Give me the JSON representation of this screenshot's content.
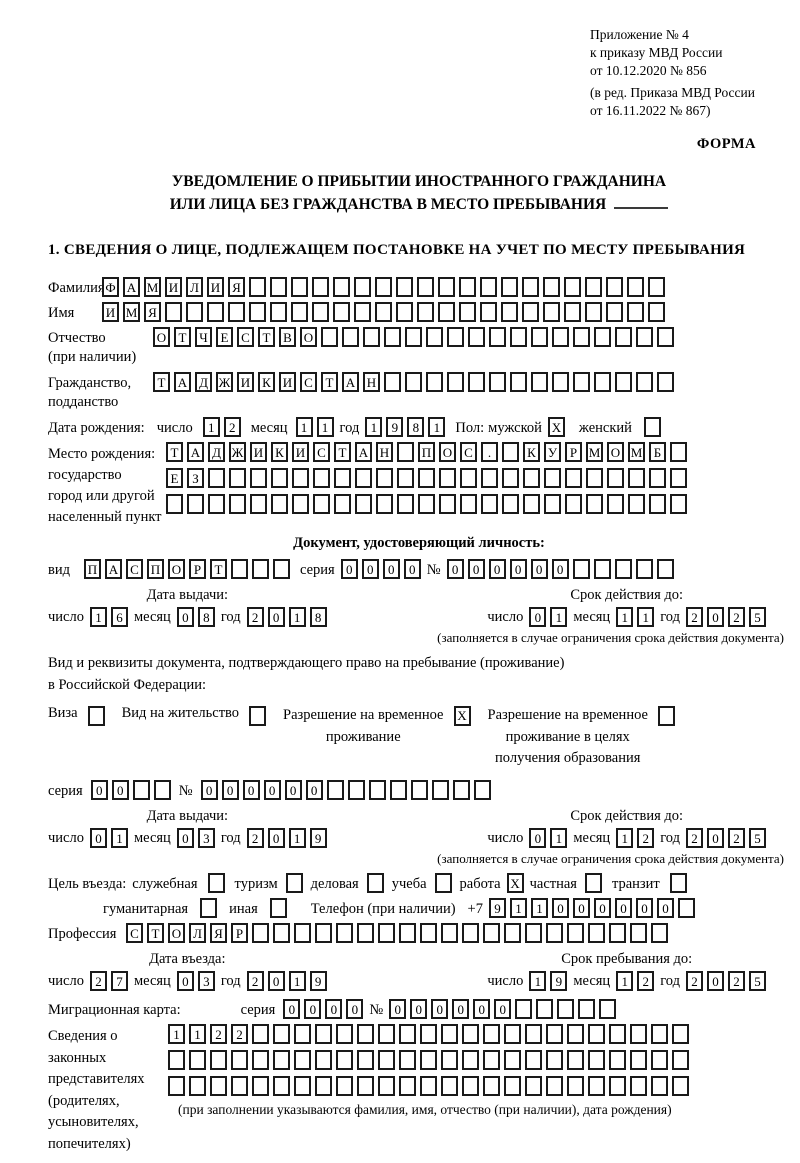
{
  "meta_block": {
    "line1": "Приложение № 4",
    "line2": "к приказу МВД России",
    "line3": "от 10.12.2020 № 856",
    "line4": "(в ред. Приказа МВД России",
    "line5": "от 16.11.2022 № 867)",
    "form_label": "ФОРМА"
  },
  "title": {
    "line1": "УВЕДОМЛЕНИЕ О ПРИБЫТИИ ИНОСТРАННОГО ГРАЖДАНИНА",
    "line2": "ИЛИ ЛИЦА БЕЗ ГРАЖДАНСТВА В МЕСТО ПРЕБЫВАНИЯ"
  },
  "section1_heading": "1. СВЕДЕНИЯ О ЛИЦЕ, ПОДЛЕЖАЩЕМ ПОСТАНОВКЕ НА УЧЕТ ПО МЕСТУ ПРЕБЫВАНИЯ",
  "labels": {
    "day": "число",
    "month": "месяц",
    "year": "год",
    "series": "серия",
    "number": "№"
  },
  "surname": {
    "label": "Фамилия",
    "cells": {
      "text": "ФАМИЛИЯ",
      "count": 27
    }
  },
  "name": {
    "label": "Имя",
    "cells": {
      "text": "ИМЯ",
      "count": 27
    }
  },
  "patronymic": {
    "label1": "Отчество",
    "label2": "(при наличии)",
    "cells": {
      "text": "ОТЧЕСТВО",
      "count": 25
    }
  },
  "citizenship": {
    "label1": "Гражданство,",
    "label2": "подданство",
    "cells": {
      "text": "ТАДЖИКИСТАН",
      "count": 25
    }
  },
  "birth_date": {
    "label": "Дата рождения:",
    "day": {
      "text": "12",
      "count": 2
    },
    "month": {
      "text": "11",
      "count": 2
    },
    "year": {
      "text": "1981",
      "count": 4
    }
  },
  "gender": {
    "label": "Пол:",
    "male": "мужской",
    "male_mark": "X",
    "female": "женский",
    "female_mark": ""
  },
  "birth_place": {
    "label1": "Место рождения:",
    "label2": "государство",
    "label3": "город или другой",
    "label4": "населенный пункт",
    "row1": {
      "text": "ТАДЖИКИСТАН ПОС. КУРМОМБ",
      "count": 25
    },
    "row2": {
      "text": "ЕЗ",
      "count": 25
    },
    "row3": {
      "text": "",
      "count": 25
    }
  },
  "identity_doc": {
    "heading": "Документ, удостоверяющий личность:",
    "kind_label": "вид",
    "kind": {
      "text": "ПАСПОРТ",
      "count": 10
    },
    "series": {
      "text": "0000",
      "count": 4
    },
    "number": {
      "text": "000000",
      "count": 11
    },
    "issue_heading": "Дата выдачи:",
    "issue": {
      "day": {
        "text": "16",
        "count": 2
      },
      "month": {
        "text": "08",
        "count": 2
      },
      "year": {
        "text": "2018",
        "count": 4
      }
    },
    "expiry_heading": "Срок действия до:",
    "expiry": {
      "day": {
        "text": "01",
        "count": 2
      },
      "month": {
        "text": "11",
        "count": 2
      },
      "year": {
        "text": "2025",
        "count": 4
      }
    },
    "note": "(заполняется в случае ограничения срока действия документа)"
  },
  "residence_doc": {
    "intro1": "Вид и реквизиты документа, подтверждающего право на пребывание (проживание)",
    "intro2": "в Российской Федерации:",
    "visa_label": "Виза",
    "visa_mark": "",
    "residence_permit_label": "Вид на жительство",
    "residence_permit_mark": "",
    "temp_permit_line1": "Разрешение на временное",
    "temp_permit_line2": "проживание",
    "temp_permit_mark": "X",
    "edu_permit_line1": "Разрешение на временное",
    "edu_permit_line2": "проживание в целях",
    "edu_permit_line3": "получения образования",
    "edu_permit_mark": "",
    "series": {
      "text": "00",
      "count": 4
    },
    "number": {
      "text": "000000",
      "count": 14
    },
    "issue_heading": "Дата выдачи:",
    "issue": {
      "day": {
        "text": "01",
        "count": 2
      },
      "month": {
        "text": "03",
        "count": 2
      },
      "year": {
        "text": "2019",
        "count": 4
      }
    },
    "expiry_heading": "Срок действия до:",
    "expiry": {
      "day": {
        "text": "01",
        "count": 2
      },
      "month": {
        "text": "12",
        "count": 2
      },
      "year": {
        "text": "2025",
        "count": 4
      }
    },
    "note": "(заполняется в случае ограничения срока действия документа)"
  },
  "visit_purpose": {
    "label": "Цель въезда:",
    "options_row1": [
      {
        "label": "служебная",
        "mark": ""
      },
      {
        "label": "туризм",
        "mark": ""
      },
      {
        "label": "деловая",
        "mark": ""
      },
      {
        "label": "учеба",
        "mark": ""
      },
      {
        "label": "работа",
        "mark": "X"
      },
      {
        "label": "частная",
        "mark": ""
      },
      {
        "label": "транзит",
        "mark": ""
      }
    ],
    "options_row2": [
      {
        "label": "гуманитарная",
        "mark": ""
      },
      {
        "label": "иная",
        "mark": ""
      }
    ]
  },
  "phone": {
    "label": "Телефон (при наличии)",
    "prefix": "+7",
    "cells": {
      "text": "911000000",
      "count": 10
    }
  },
  "profession": {
    "label": "Профессия",
    "cells": {
      "text": "СТОЛЯР",
      "count": 26
    }
  },
  "entry_date": {
    "heading": "Дата въезда:",
    "day": {
      "text": "27",
      "count": 2
    },
    "month": {
      "text": "03",
      "count": 2
    },
    "year": {
      "text": "2019",
      "count": 4
    }
  },
  "stay_until": {
    "heading": "Срок пребывания до:",
    "day": {
      "text": "19",
      "count": 2
    },
    "month": {
      "text": "12",
      "count": 2
    },
    "year": {
      "text": "2025",
      "count": 4
    }
  },
  "migration_card": {
    "label": "Миграционная карта:",
    "series": {
      "text": "0000",
      "count": 4
    },
    "number": {
      "text": "000000",
      "count": 11
    }
  },
  "representatives": {
    "label1": "Сведения о",
    "label2": "законных",
    "label3": "представителях",
    "label4": "(родителях,",
    "label5": "усыновителях,",
    "label6": "попечителях)",
    "row1": {
      "text": "1122",
      "count": 25
    },
    "row2": {
      "text": "",
      "count": 25
    },
    "row3": {
      "text": "",
      "count": 25
    },
    "note": "(при заполнении указываются фамилия, имя, отчество (при наличии), дата рождения)"
  }
}
